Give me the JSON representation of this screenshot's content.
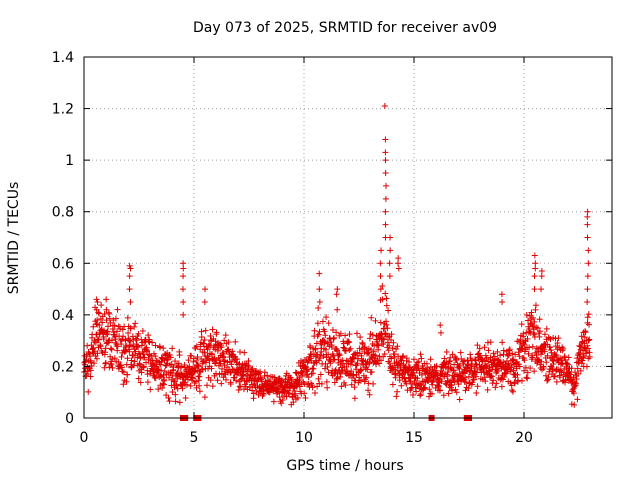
{
  "chart_data": {
    "type": "scatter",
    "title": "Day 073 of 2025, SRMTID for receiver av09",
    "xlabel": "GPS time / hours",
    "ylabel": "SRMTID / TECUs",
    "xlim": [
      0,
      24
    ],
    "ylim": [
      0,
      1.4
    ],
    "xticks": [
      0,
      5,
      10,
      15,
      20
    ],
    "yticks": [
      0,
      0.2,
      0.4,
      0.6,
      0.8,
      1,
      1.2,
      1.4
    ],
    "xtick_labels": [
      "0",
      "5",
      "10",
      "15",
      "20"
    ],
    "ytick_labels": [
      "0",
      "0.2",
      "0.4",
      "0.6",
      "0.8",
      "1",
      "1.2",
      "1.4"
    ],
    "grid": true,
    "marker": "+",
    "color": "#e00000",
    "series": [
      {
        "name": "SRMTID av09",
        "profile_x": [
          0,
          0.3,
          0.6,
          1.0,
          1.5,
          2.0,
          2.2,
          2.6,
          3.0,
          3.5,
          4.0,
          4.4,
          4.6,
          5.0,
          5.5,
          6.0,
          6.5,
          7.0,
          7.5,
          8.0,
          8.5,
          9.0,
          9.5,
          10.0,
          10.5,
          11.0,
          11.5,
          12.0,
          12.5,
          13.0,
          13.4,
          13.6,
          13.8,
          14.0,
          14.5,
          15.0,
          15.5,
          16.0,
          16.5,
          17.0,
          17.5,
          18.0,
          18.5,
          19.0,
          19.5,
          20.0,
          20.4,
          20.7,
          21.0,
          21.5,
          22.0,
          22.3,
          22.6,
          22.8,
          23.0
        ],
        "profile_mean": [
          0.18,
          0.22,
          0.32,
          0.3,
          0.27,
          0.26,
          0.3,
          0.24,
          0.22,
          0.2,
          0.18,
          0.17,
          0.15,
          0.17,
          0.24,
          0.25,
          0.22,
          0.18,
          0.16,
          0.13,
          0.12,
          0.12,
          0.12,
          0.17,
          0.24,
          0.25,
          0.24,
          0.22,
          0.2,
          0.24,
          0.3,
          0.36,
          0.3,
          0.22,
          0.18,
          0.17,
          0.16,
          0.16,
          0.17,
          0.17,
          0.17,
          0.2,
          0.2,
          0.2,
          0.2,
          0.25,
          0.3,
          0.28,
          0.25,
          0.22,
          0.18,
          0.12,
          0.24,
          0.3,
          0.3
        ],
        "profile_spread": [
          0.05,
          0.08,
          0.1,
          0.1,
          0.09,
          0.09,
          0.1,
          0.09,
          0.08,
          0.08,
          0.08,
          0.07,
          0.05,
          0.06,
          0.1,
          0.1,
          0.08,
          0.06,
          0.05,
          0.04,
          0.04,
          0.04,
          0.05,
          0.08,
          0.1,
          0.1,
          0.1,
          0.09,
          0.08,
          0.09,
          0.1,
          0.12,
          0.11,
          0.08,
          0.07,
          0.06,
          0.06,
          0.06,
          0.06,
          0.06,
          0.06,
          0.07,
          0.07,
          0.07,
          0.07,
          0.09,
          0.1,
          0.1,
          0.09,
          0.08,
          0.07,
          0.05,
          0.07,
          0.08,
          0.08
        ],
        "spikes": [
          {
            "x": 0.6,
            "y": [
              0.38,
              0.42,
              0.45,
              0.46
            ]
          },
          {
            "x": 1.0,
            "y": [
              0.42,
              0.46
            ]
          },
          {
            "x": 2.1,
            "y": [
              0.45,
              0.5,
              0.55,
              0.58,
              0.59
            ]
          },
          {
            "x": 4.5,
            "y": [
              0.4,
              0.45,
              0.5,
              0.55,
              0.58,
              0.6
            ]
          },
          {
            "x": 5.5,
            "y": [
              0.45,
              0.5
            ]
          },
          {
            "x": 10.7,
            "y": [
              0.45,
              0.5,
              0.56
            ]
          },
          {
            "x": 11.5,
            "y": [
              0.42,
              0.48,
              0.5
            ]
          },
          {
            "x": 13.5,
            "y": [
              0.5,
              0.55,
              0.6,
              0.65
            ]
          },
          {
            "x": 13.7,
            "y": [
              0.7,
              0.75,
              0.8,
              0.85,
              0.9,
              0.95,
              1.0,
              1.03,
              1.08,
              1.21
            ]
          },
          {
            "x": 13.9,
            "y": [
              0.55,
              0.6,
              0.65,
              0.7
            ]
          },
          {
            "x": 14.3,
            "y": [
              0.58,
              0.6,
              0.62
            ]
          },
          {
            "x": 16.2,
            "y": [
              0.33,
              0.36
            ]
          },
          {
            "x": 19.0,
            "y": [
              0.45,
              0.48
            ]
          },
          {
            "x": 20.5,
            "y": [
              0.5,
              0.55,
              0.58,
              0.6,
              0.63
            ]
          },
          {
            "x": 20.8,
            "y": [
              0.5,
              0.55,
              0.57
            ]
          },
          {
            "x": 22.9,
            "y": [
              0.45,
              0.5,
              0.55,
              0.6,
              0.65,
              0.7,
              0.75,
              0.78,
              0.8
            ]
          }
        ],
        "zero_markers_x": [
          4.5,
          4.6,
          5.1,
          5.2,
          15.8,
          17.4,
          17.5
        ]
      }
    ]
  }
}
